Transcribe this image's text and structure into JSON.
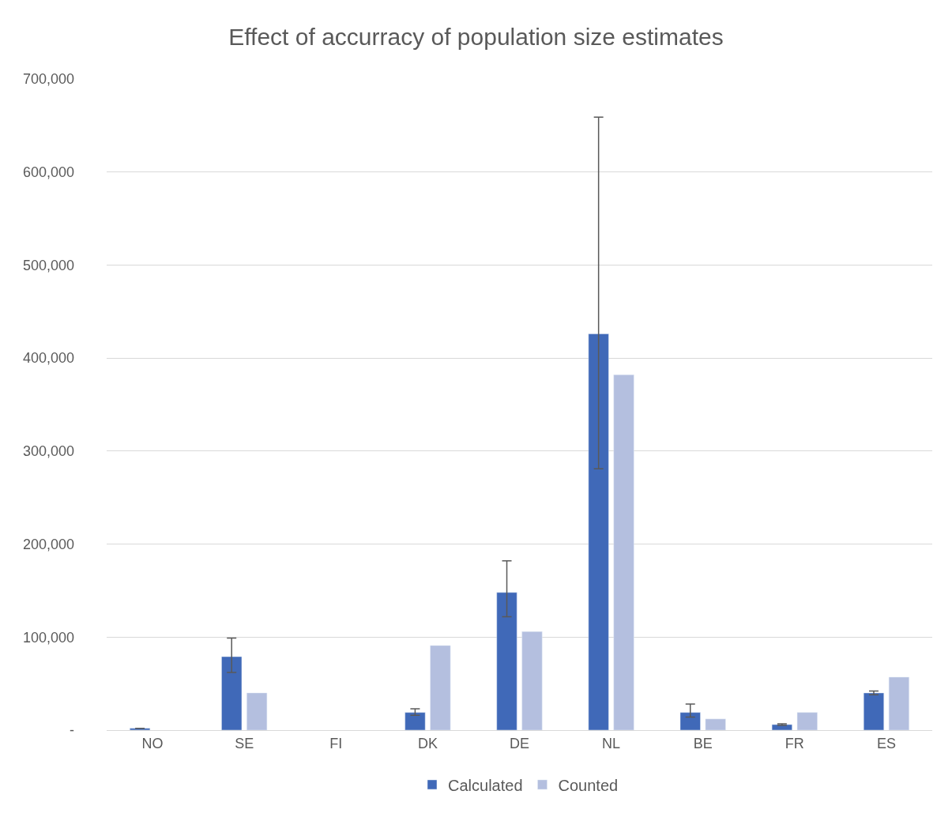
{
  "chart_data": {
    "type": "bar",
    "title": "Effect of accurracy of population size estimates",
    "categories": [
      "NO",
      "SE",
      "FI",
      "DK",
      "DE",
      "NL",
      "BE",
      "FR",
      "ES"
    ],
    "series": [
      {
        "name": "Calculated",
        "color": "#4069b8",
        "values": [
          2000,
          79000,
          null,
          19000,
          148000,
          426000,
          19000,
          6000,
          40000
        ],
        "errors": [
          null,
          [
            62000,
            99000
          ],
          null,
          [
            16000,
            23000
          ],
          [
            122000,
            182000
          ],
          [
            281000,
            659000
          ],
          [
            14000,
            28000
          ],
          [
            5200,
            6800
          ],
          [
            38000,
            42000
          ]
        ]
      },
      {
        "name": "Counted",
        "color": "#b4bfdf",
        "values": [
          null,
          40000,
          null,
          91000,
          106000,
          382000,
          12000,
          19000,
          57000
        ]
      }
    ],
    "ylim": [
      0,
      700000
    ],
    "yticks": [
      {
        "value": 0,
        "label": "-"
      },
      {
        "value": 100000,
        "label": "100,000"
      },
      {
        "value": 200000,
        "label": "200,000"
      },
      {
        "value": 300000,
        "label": "300,000"
      },
      {
        "value": 400000,
        "label": "400,000"
      },
      {
        "value": 500000,
        "label": "500,000"
      },
      {
        "value": 600000,
        "label": "600,000"
      },
      {
        "value": 700000,
        "label": "700,000"
      }
    ],
    "grid": "y",
    "legend": "bottom"
  }
}
